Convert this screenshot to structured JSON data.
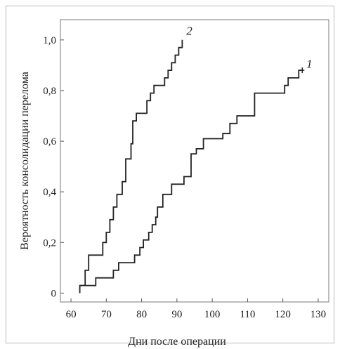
{
  "chart_data": {
    "type": "line",
    "subtype": "step",
    "xlabel": "Дни после операции",
    "ylabel": "Вероятность консолидации перелома",
    "xlim": [
      57,
      133
    ],
    "ylim": [
      -0.035,
      1.08
    ],
    "xticks": [
      60,
      70,
      80,
      90,
      100,
      110,
      120,
      130
    ],
    "xtick_labels": [
      "60",
      "70",
      "80",
      "90",
      "100",
      "110",
      "120",
      "130"
    ],
    "yticks": [
      0,
      0.2,
      0.4,
      0.6,
      0.8,
      1.0
    ],
    "ytick_labels": [
      "0",
      "0,2",
      "0,4",
      "0,6",
      "0,8",
      "1,0"
    ],
    "grid": false,
    "line_color": "#222222",
    "series": [
      {
        "name": "1",
        "points": [
          [
            62.5,
            0
          ],
          [
            62.5,
            0.03
          ],
          [
            67,
            0.03
          ],
          [
            67,
            0.06
          ],
          [
            72,
            0.06
          ],
          [
            72,
            0.09
          ],
          [
            73.5,
            0.09
          ],
          [
            73.5,
            0.12
          ],
          [
            78,
            0.12
          ],
          [
            78,
            0.15
          ],
          [
            79.5,
            0.15
          ],
          [
            79.5,
            0.18
          ],
          [
            80.5,
            0.18
          ],
          [
            80.5,
            0.21
          ],
          [
            82,
            0.21
          ],
          [
            82,
            0.24
          ],
          [
            83,
            0.24
          ],
          [
            83,
            0.27
          ],
          [
            84,
            0.27
          ],
          [
            84,
            0.3
          ],
          [
            84.5,
            0.3
          ],
          [
            84.5,
            0.34
          ],
          [
            86,
            0.34
          ],
          [
            86,
            0.39
          ],
          [
            88.5,
            0.39
          ],
          [
            88.5,
            0.43
          ],
          [
            92,
            0.43
          ],
          [
            92,
            0.46
          ],
          [
            94,
            0.46
          ],
          [
            94,
            0.55
          ],
          [
            95.5,
            0.55
          ],
          [
            95.5,
            0.57
          ],
          [
            97.5,
            0.57
          ],
          [
            97.5,
            0.61
          ],
          [
            103,
            0.61
          ],
          [
            103,
            0.63
          ],
          [
            105,
            0.63
          ],
          [
            105,
            0.67
          ],
          [
            107,
            0.67
          ],
          [
            107,
            0.7
          ],
          [
            112,
            0.7
          ],
          [
            112,
            0.79
          ],
          [
            120.5,
            0.79
          ],
          [
            120.5,
            0.82
          ],
          [
            121.5,
            0.82
          ],
          [
            121.5,
            0.85
          ],
          [
            124.5,
            0.85
          ],
          [
            124.5,
            0.88
          ],
          [
            125.5,
            0.88
          ]
        ]
      },
      {
        "name": "2",
        "points": [
          [
            62.5,
            0.03
          ],
          [
            64,
            0.03
          ],
          [
            64,
            0.09
          ],
          [
            65,
            0.09
          ],
          [
            65,
            0.15
          ],
          [
            69,
            0.15
          ],
          [
            69,
            0.2
          ],
          [
            70,
            0.2
          ],
          [
            70,
            0.24
          ],
          [
            71,
            0.24
          ],
          [
            71,
            0.29
          ],
          [
            72,
            0.29
          ],
          [
            72,
            0.34
          ],
          [
            73,
            0.34
          ],
          [
            73,
            0.39
          ],
          [
            74.5,
            0.39
          ],
          [
            74.5,
            0.44
          ],
          [
            75.5,
            0.44
          ],
          [
            75.5,
            0.53
          ],
          [
            77,
            0.53
          ],
          [
            77,
            0.59
          ],
          [
            77.5,
            0.59
          ],
          [
            77.5,
            0.68
          ],
          [
            78.5,
            0.68
          ],
          [
            78.5,
            0.71
          ],
          [
            81.5,
            0.71
          ],
          [
            81.5,
            0.76
          ],
          [
            82.5,
            0.76
          ],
          [
            82.5,
            0.79
          ],
          [
            83.5,
            0.79
          ],
          [
            83.5,
            0.82
          ],
          [
            86.5,
            0.82
          ],
          [
            86.5,
            0.85
          ],
          [
            87.5,
            0.85
          ],
          [
            87.5,
            0.88
          ],
          [
            88.5,
            0.88
          ],
          [
            88.5,
            0.91
          ],
          [
            89.5,
            0.91
          ],
          [
            89.5,
            0.94
          ],
          [
            90.5,
            0.94
          ],
          [
            90.5,
            0.97
          ],
          [
            91.5,
            0.97
          ],
          [
            91.5,
            1.0
          ]
        ]
      }
    ],
    "annotations": [
      {
        "text": "2",
        "x": 93.5,
        "y": 1.02
      },
      {
        "text": "1",
        "x": 127.5,
        "y": 0.89
      }
    ]
  }
}
